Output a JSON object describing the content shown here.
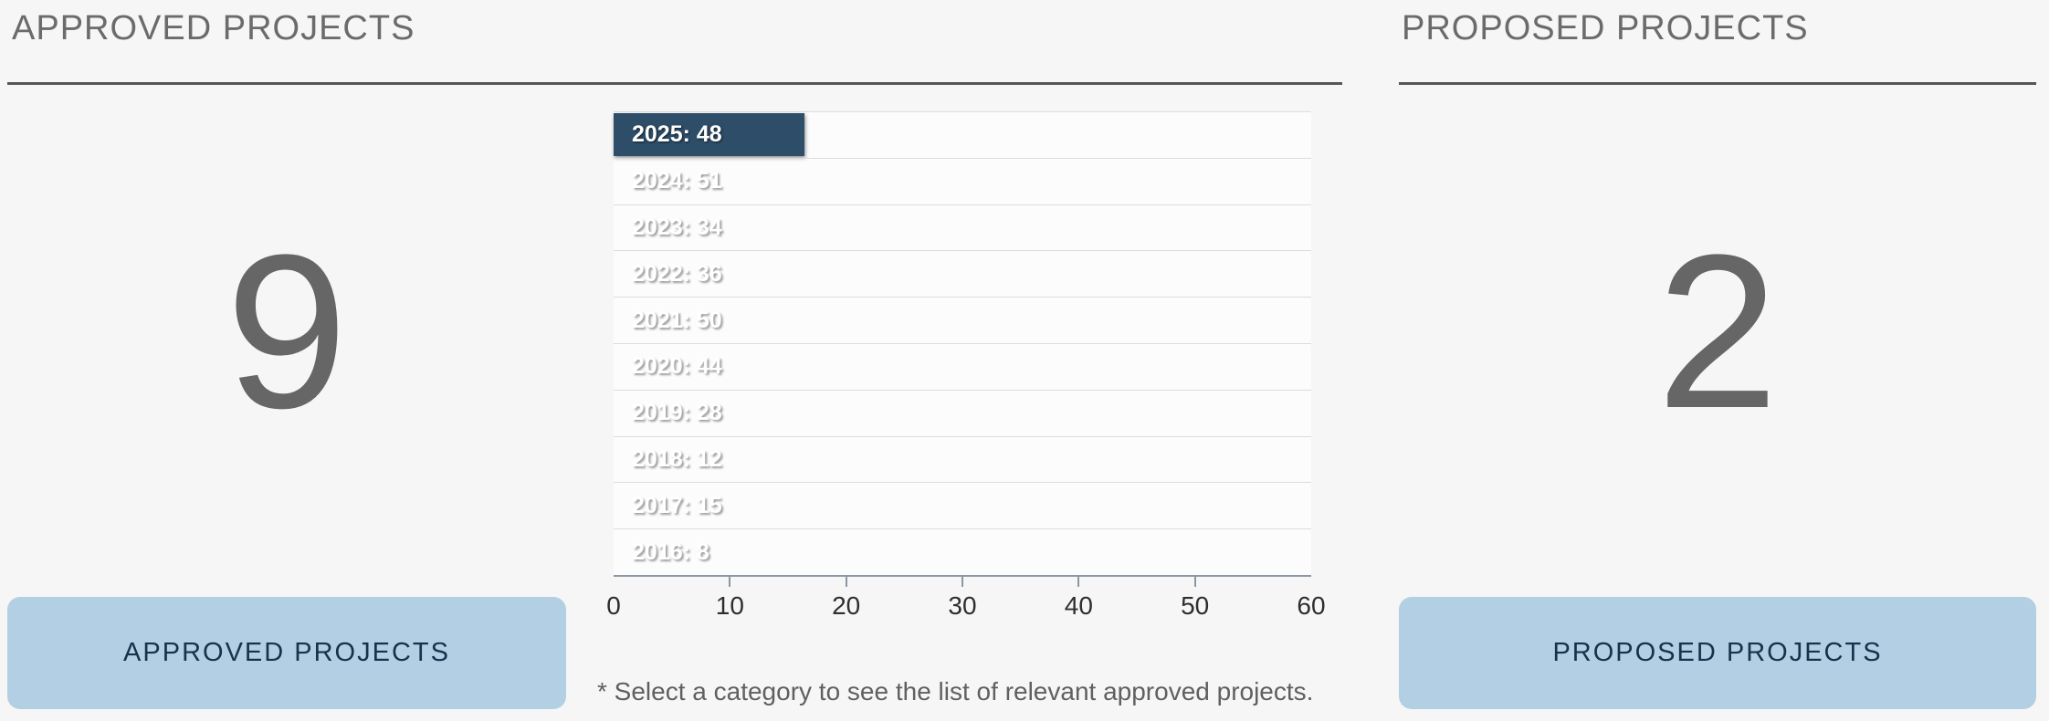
{
  "left_panel": {
    "title": "APPROVED PROJECTS",
    "count": "9",
    "button_label": "APPROVED PROJECTS"
  },
  "right_panel": {
    "title": "PROPOSED PROJECTS",
    "count": "2",
    "button_label": "PROPOSED PROJECTS"
  },
  "footnote": "* Select a category to see the list of relevant approved projects.",
  "chart_data": {
    "type": "bar",
    "orientation": "horizontal",
    "title": "",
    "categories": [
      "2025",
      "2024",
      "2023",
      "2022",
      "2021",
      "2020",
      "2019",
      "2018",
      "2017",
      "2016"
    ],
    "values": [
      48,
      51,
      34,
      36,
      50,
      44,
      28,
      12,
      15,
      8
    ],
    "bar_labels": [
      "2025: 48",
      "2024: 51",
      "2023: 34",
      "2022: 36",
      "2021: 50",
      "2020: 44",
      "2019: 28",
      "2018: 12",
      "2017: 15",
      "2016: 8"
    ],
    "selected_category": "2025",
    "selected_index": 0,
    "x_ticks": [
      0,
      10,
      20,
      30,
      40,
      50,
      60
    ],
    "xlim": [
      0,
      60
    ],
    "grid": "horizontal row separators on, vertical off",
    "legend": "none"
  },
  "colors": {
    "page_background": "#f6f6f6",
    "highlight_bar": "#2d4d68",
    "button_background": "#b3cfe3",
    "button_text": "#16324c",
    "big_number": "#666666",
    "heading_text": "#6b6b6b",
    "axis": "#8b98a4"
  }
}
